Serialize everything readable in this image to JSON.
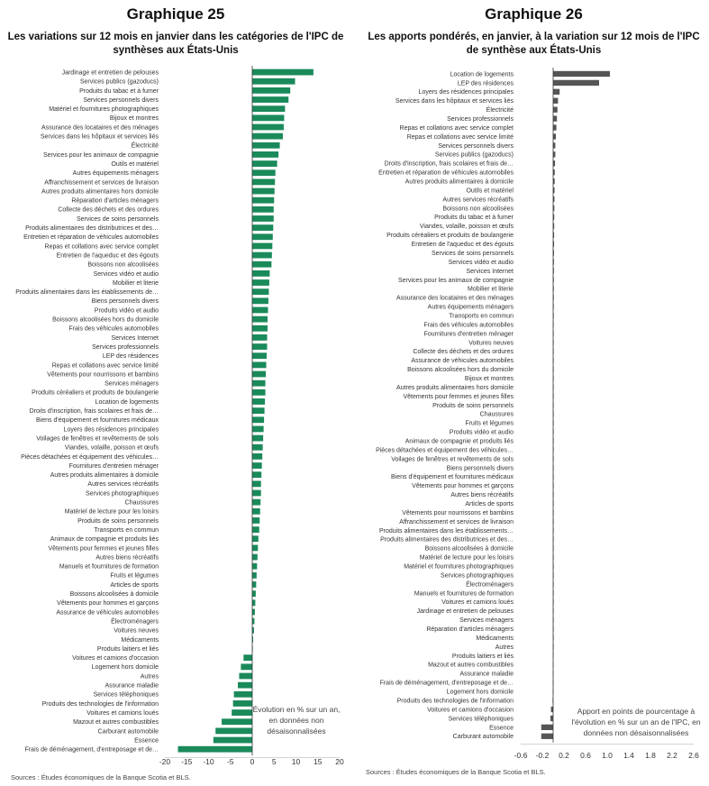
{
  "chart_data": [
    {
      "type": "bar",
      "orientation": "horizontal",
      "title": "Graphique 25",
      "subtitle": "Les variations sur 12 mois en janvier dans les catégories de l'IPC de synthèses aux États-Unis",
      "annotation": "Évolution en % sur un an, en données non désaisonnalisées",
      "source": "Sources : Études économiques de la Banque Scotia et BLS.",
      "color": "#1a8a5a",
      "xlim": [
        -20,
        20
      ],
      "xticks": [
        "-20",
        "-15",
        "-10",
        "-5",
        "0",
        "5",
        "10",
        "15",
        "20"
      ],
      "grid": false,
      "categories": [
        "Jardinage et entretien de pelouses",
        "Services publics (gazoducs)",
        "Produits du tabac et à fumer",
        "Services personnels divers",
        "Matériel et fournitures photographiques",
        "Bijoux et montres",
        "Assurance des locataires et des ménages",
        "Services dans les hôpitaux et services liés",
        "Électricité",
        "Services pour les animaux de compagnie",
        "Outils et matériel",
        "Autres équipements ménagers",
        "Affranchissement et services de livraison",
        "Autres produits alimentaires hors domicile",
        "Réparation d'articles ménagers",
        "Collecte des déchets et des ordures",
        "Services de soins personnels",
        "Produits alimentaires des distributrices et des…",
        "Entretien et réparation de véhicules automobiles",
        "Repas et collations avec service complet",
        "Entretien de l'aqueduc et des égouts",
        "Boissons non alcoolisées",
        "Services vidéo et audio",
        "Mobilier et literie",
        "Produits alimentaires dans les établissements de…",
        "Biens personnels divers",
        "Produits vidéo et audio",
        "Boissons alcoolisées hors du domicile",
        "Frais des véhicules automobiles",
        "Services Internet",
        "Services professionnels",
        "LEP des résidences",
        "Repas et collations avec service limité",
        "Vêtements pour nourrissons et bambins",
        "Services ménagers",
        "Produits céréaliers et produits de boulangerie",
        "Location de logements",
        "Droits d'inscription, frais scolaires et frais de…",
        "Biens d'équipement et fournitures médicaux",
        "Loyers des résidences principales",
        "Voilages de fenêtres et revêtements de sols",
        "Viandes, volaille, poisson et œufs",
        "Pièces détachées et équipement des véhicules…",
        "Fournitures d'entretien ménager",
        "Autres produits alimentaires à domicile",
        "Autres services récréatifs",
        "Services photographiques",
        "Chaussures",
        "Matériel de lecture pour les loisirs",
        "Produits de soins personnels",
        "Transports en commun",
        "Animaux de compagnie et produits liés",
        "Vêtements pour femmes et jeunes filles",
        "Autres biens récréatifs",
        "Manuels et fournitures de formation",
        "Fruits et légumes",
        "Articles de sports",
        "Boissons alcoolisées à domicile",
        "Vêtements pour hommes et garçons",
        "Assurance de véhicules automobiles",
        "Électroménagers",
        "Voitures neuves",
        "Médicaments",
        "Produits laitiers et liés",
        "Voitures et camions d'occasion",
        "Logement hors domicile",
        "Autres",
        "Assurance maladie",
        "Services téléphoniques",
        "Produits des technologies de l'information",
        "Voitures et camions loués",
        "Mazout et autres combustibles",
        "Carburant automobile",
        "Essence",
        "Frais de déménagement, d'entreposage et de…"
      ],
      "values": [
        14.0,
        9.8,
        8.7,
        8.3,
        7.5,
        7.3,
        7.2,
        7.0,
        6.3,
        6.0,
        5.7,
        5.3,
        5.2,
        5.1,
        5.0,
        4.9,
        4.9,
        4.8,
        4.7,
        4.6,
        4.5,
        4.4,
        4.0,
        3.9,
        3.8,
        3.7,
        3.6,
        3.5,
        3.5,
        3.4,
        3.4,
        3.3,
        3.2,
        3.1,
        3.0,
        3.0,
        2.9,
        2.8,
        2.7,
        2.6,
        2.5,
        2.4,
        2.3,
        2.2,
        2.1,
        2.0,
        2.0,
        1.9,
        1.8,
        1.7,
        1.6,
        1.4,
        1.3,
        1.2,
        1.1,
        1.0,
        0.9,
        0.8,
        0.7,
        0.6,
        0.5,
        0.4,
        0.2,
        0.1,
        -2.0,
        -2.6,
        -3.0,
        -3.3,
        -4.2,
        -4.4,
        -4.7,
        -7.0,
        -8.4,
        -8.9,
        -17.0
      ]
    },
    {
      "type": "bar",
      "orientation": "horizontal",
      "title": "Graphique 26",
      "subtitle": "Les apports pondérés, en janvier, à la variation sur 12 mois de l'IPC de synthèse aux États-Unis",
      "annotation": "Apport en points de pourcentage à l'évolution en % sur un an de l'IPC, en données non désaisonnalisées",
      "source": "Sources : Études économiques de la Banque Scotia et BLS.",
      "color": "#555555",
      "xlim": [
        -0.6,
        2.6
      ],
      "xticks": [
        "-0.6",
        "-0.2",
        "0.2",
        "0.6",
        "1.0",
        "1.4",
        "1.8",
        "2.2",
        "2.6"
      ],
      "grid": false,
      "categories": [
        "Location de logements",
        "LEP des résidences",
        "Loyers des résidences principales",
        "Services dans les hôpitaux et services liés",
        "Électricité",
        "Services professionnels",
        "Repas et collations avec service complet",
        "Repas et collations avec service limité",
        "Services personnels divers",
        "Services publics (gazoducs)",
        "Droits d'inscription, frais scolaires et frais de…",
        "Entretien et réparation de véhicules automobiles",
        "Autres produits alimentaires à domicile",
        "Outils et matériel",
        "Autres services récréatifs",
        "Boissons non alcoolisées",
        "Produits du tabac et à fumer",
        "Viandes, volaille, poisson et œufs",
        "Produits céréaliers et produits de boulangerie",
        "Entretien de l'aqueduc et des égouts",
        "Services de soins personnels",
        "Services vidéo et audio",
        "Services Internet",
        "Services pour les animaux de compagnie",
        "Mobilier et literie",
        "Assurance des locataires et des ménages",
        "Autres équipements ménagers",
        "Transports en commun",
        "Frais des véhicules automobiles",
        "Fournitures d'entretien ménager",
        "Voitures neuves",
        "Collecte des déchets et des ordures",
        "Assurance de véhicules automobiles",
        "Boissons alcoolisées hors du domicile",
        "Bijoux et montres",
        "Autres produits alimentaires hors domicile",
        "Vêtements pour femmes et jeunes filles",
        "Produits de soins personnels",
        "Chaussures",
        "Fruits et légumes",
        "Produits vidéo et audio",
        "Animaux de compagnie et produits liés",
        "Pièces détachées et équipement des véhicules…",
        "Voilages de fenêtres et revêtements de sols",
        "Biens personnels divers",
        "Biens d'équipement et fournitures médicaux",
        "Vêtements pour hommes et garçons",
        "Autres biens récréatifs",
        "Articles de sports",
        "Vêtements pour nourrissons et bambins",
        "Affranchissement et services de livraison",
        "Produits alimentaires dans les établissements…",
        "Produits alimentaires des distributrices et des…",
        "Boissons alcoolisées à domicile",
        "Matériel de lecture pour les loisirs",
        "Matériel et fournitures photographiques",
        "Services photographiques",
        "Électroménagers",
        "Manuels et fournitures de formation",
        "Voitures et camions loués",
        "Jardinage et entretien de pelouses",
        "Services ménagers",
        "Réparation d'articles ménagers",
        "Médicaments",
        "Autres",
        "Produits laitiers et liés",
        "Mazout et autres combustibles",
        "Assurance maladie",
        "Frais de déménagement, d'entreposage et de…",
        "Logement hors domicile",
        "Produits des technologies de l'information",
        "Voitures et camions d'occasion",
        "Services téléphoniques",
        "Essence",
        "Carburant automobile"
      ],
      "values": [
        1.05,
        0.85,
        0.12,
        0.09,
        0.08,
        0.07,
        0.06,
        0.05,
        0.04,
        0.04,
        0.035,
        0.03,
        0.028,
        0.026,
        0.024,
        0.022,
        0.02,
        0.019,
        0.018,
        0.017,
        0.016,
        0.015,
        0.014,
        0.013,
        0.012,
        0.012,
        0.011,
        0.011,
        0.01,
        0.01,
        0.009,
        0.009,
        0.008,
        0.008,
        0.008,
        0.007,
        0.007,
        0.007,
        0.006,
        0.006,
        0.006,
        0.005,
        0.005,
        0.005,
        0.005,
        0.004,
        0.004,
        0.004,
        0.004,
        0.003,
        0.003,
        0.003,
        0.003,
        0.003,
        0.002,
        0.002,
        0.002,
        0.002,
        0.002,
        0.001,
        0.001,
        0.001,
        0.001,
        0.0005,
        0.0,
        -0.001,
        -0.002,
        -0.003,
        -0.003,
        -0.005,
        -0.01,
        -0.04,
        -0.05,
        -0.22,
        -0.22
      ]
    }
  ]
}
